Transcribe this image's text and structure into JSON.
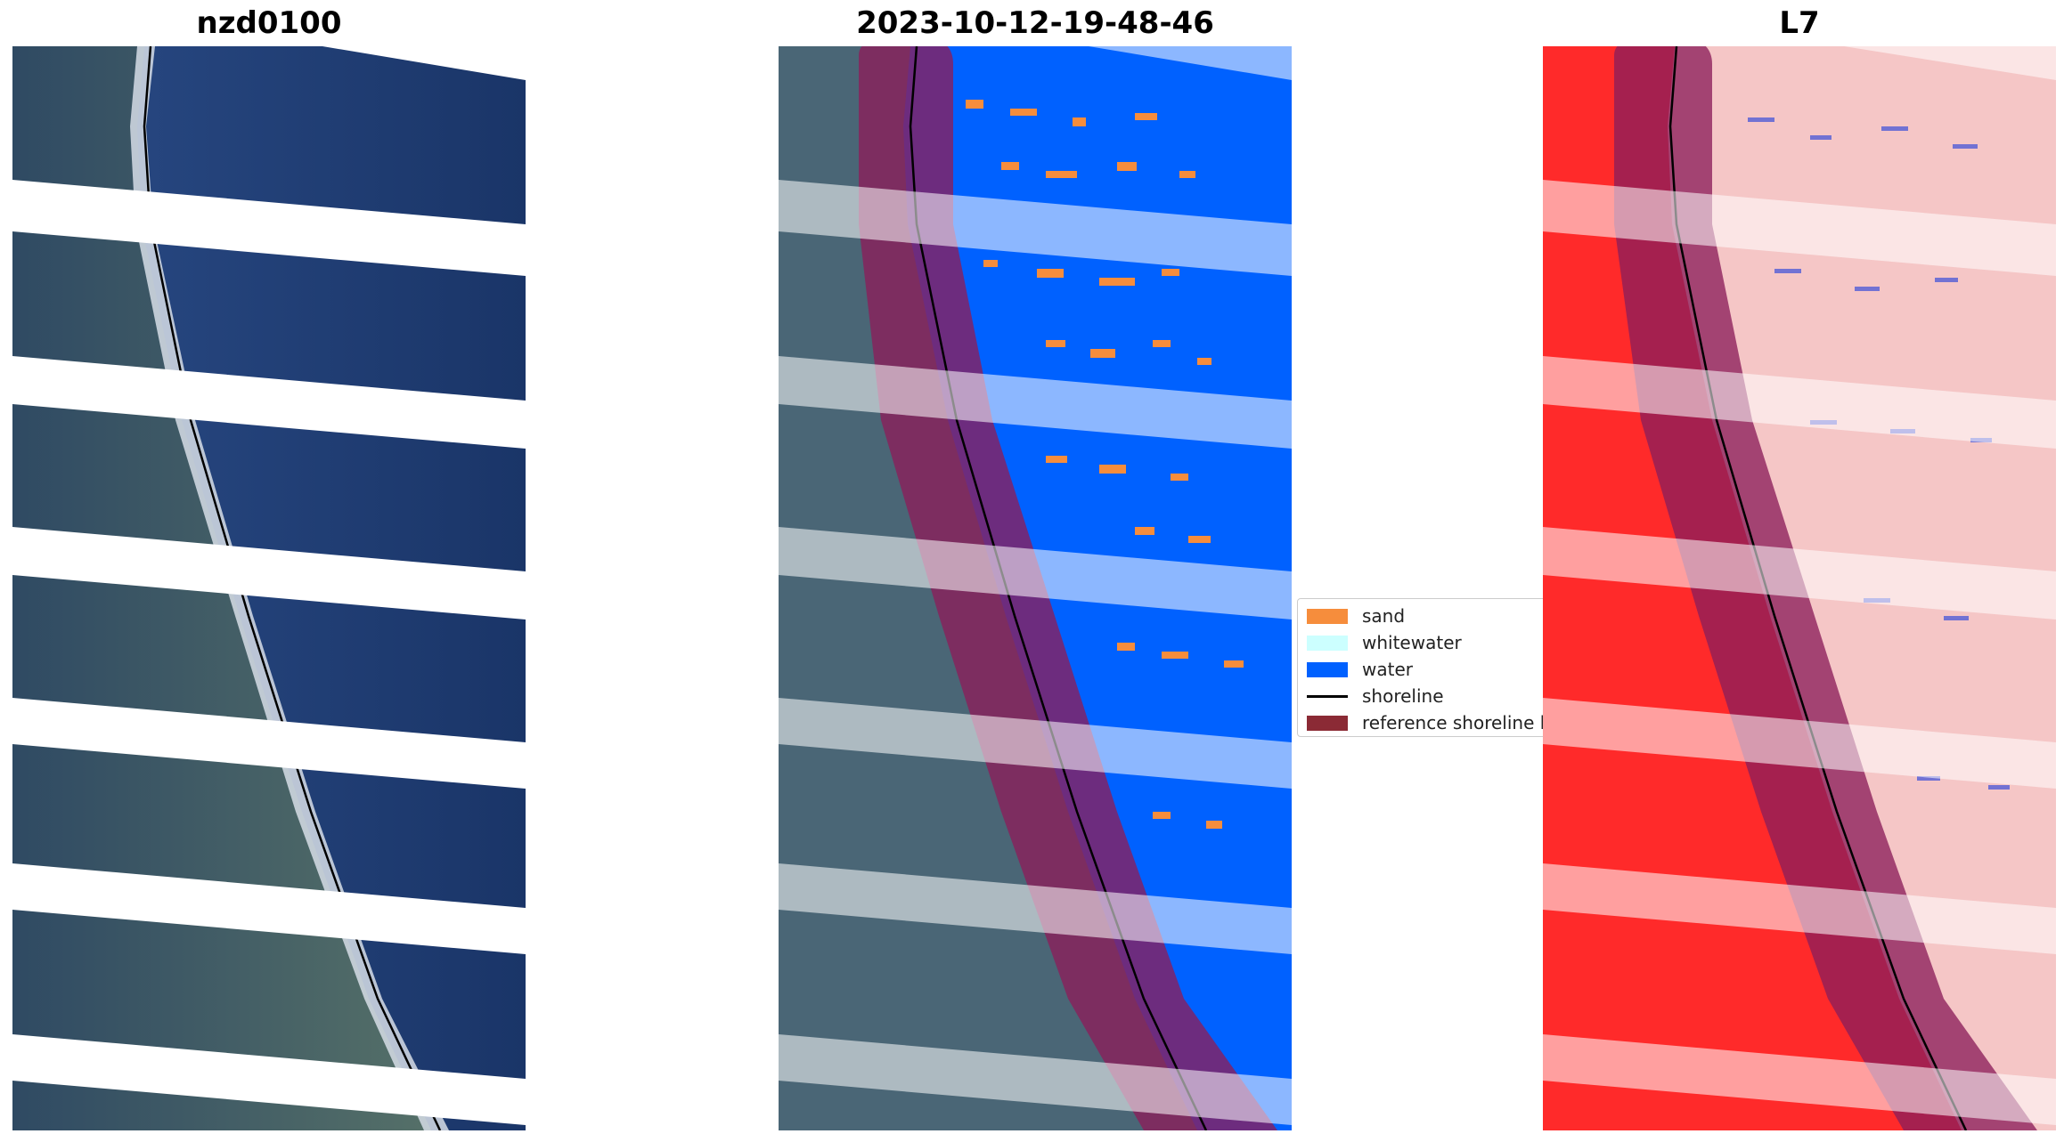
{
  "panels": [
    {
      "title": "nzd0100"
    },
    {
      "title": "2023-10-12-19-48-46"
    },
    {
      "title": "L7"
    }
  ],
  "legend": {
    "items": [
      {
        "label": "sand",
        "color": "#f68d3c",
        "kind": "patch"
      },
      {
        "label": "whitewater",
        "color": "#ccffff",
        "kind": "patch"
      },
      {
        "label": "water",
        "color": "#0061ff",
        "kind": "patch"
      },
      {
        "label": "shoreline",
        "color": "#000000",
        "kind": "line"
      },
      {
        "label": "reference shoreline buffer",
        "color": "#8b2a35",
        "kind": "patch"
      }
    ]
  },
  "colors": {
    "ocean_rgb": "#1d3b73",
    "land_rgb": "#3f5f6e",
    "surf": "#dfe6ee",
    "buffer": "#8c1e5a",
    "water_class": "#0061ff",
    "land_index": "#ff2a2a",
    "water_index": "#f7c7c7"
  }
}
